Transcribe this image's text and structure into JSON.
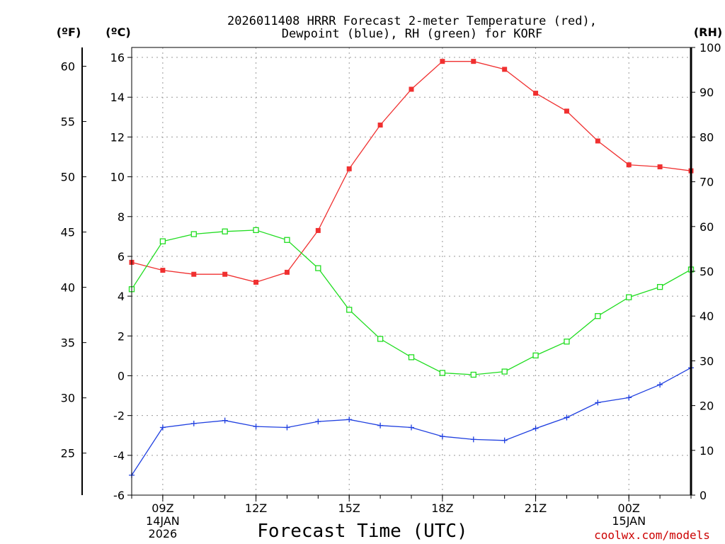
{
  "chart_data": {
    "type": "line",
    "title_line1": "2026011408 HRRR Forecast 2-meter Temperature (red),",
    "title_line2": "Dewpoint (blue), RH (green) for KORF",
    "xlabel": "Forecast Time (UTC)",
    "unit_f": "(ºF)",
    "unit_c": "(ºC)",
    "unit_rh": "(RH)",
    "credit": "coolwx.com/models",
    "x_hours": [
      8,
      9,
      10,
      11,
      12,
      13,
      14,
      15,
      16,
      17,
      18,
      19,
      20,
      21,
      22,
      23,
      24,
      25,
      26
    ],
    "xlim": [
      8,
      26
    ],
    "x_ticks": [
      {
        "hour": 9,
        "label": "09Z",
        "date1": "14JAN",
        "date2": "2026"
      },
      {
        "hour": 12,
        "label": "12Z"
      },
      {
        "hour": 15,
        "label": "15Z"
      },
      {
        "hour": 18,
        "label": "18Z"
      },
      {
        "hour": 21,
        "label": "21Z"
      },
      {
        "hour": 24,
        "label": "00Z",
        "date1": "15JAN"
      }
    ],
    "ylim_c": [
      -6,
      16.5
    ],
    "y_ticks_c": [
      "16",
      "14",
      "12",
      "10",
      "8",
      "6",
      "4",
      "2",
      "0",
      "-2",
      "-4",
      "-6"
    ],
    "y_ticks_f": [
      "60",
      "55",
      "50",
      "45",
      "40",
      "35",
      "30",
      "25"
    ],
    "ylim_rh": [
      0,
      100
    ],
    "y_ticks_rh": [
      "100",
      "90",
      "80",
      "70",
      "60",
      "50",
      "40",
      "30",
      "20",
      "10",
      "0"
    ],
    "series": [
      {
        "name": "Temperature",
        "color": "#f03030",
        "marker": "filled-square",
        "axis": "c",
        "values": [
          5.7,
          5.3,
          5.1,
          5.1,
          4.7,
          5.2,
          7.3,
          10.4,
          12.6,
          14.4,
          15.8,
          15.8,
          15.4,
          14.2,
          13.3,
          11.8,
          10.6,
          10.5,
          10.3
        ]
      },
      {
        "name": "Dewpoint",
        "color": "#2040e0",
        "marker": "plus",
        "axis": "c",
        "values": [
          -5.0,
          -2.6,
          -2.4,
          -2.25,
          -2.55,
          -2.6,
          -2.3,
          -2.2,
          -2.5,
          -2.6,
          -3.05,
          -3.2,
          -3.25,
          -2.65,
          -2.1,
          -1.35,
          -1.1,
          -0.45,
          0.4
        ]
      },
      {
        "name": "RH",
        "color": "#20dd20",
        "marker": "open-square",
        "axis": "rh",
        "values": [
          46.0,
          56.7,
          58.3,
          58.9,
          59.2,
          57.0,
          50.7,
          41.4,
          34.9,
          30.8,
          27.3,
          26.9,
          27.6,
          31.2,
          34.3,
          40.0,
          44.2,
          46.5,
          50.4
        ]
      }
    ]
  }
}
